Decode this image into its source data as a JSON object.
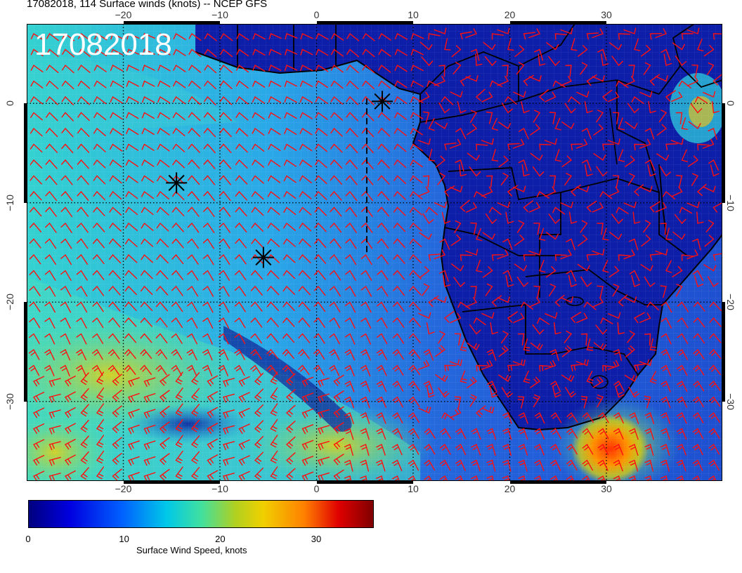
{
  "title": "17082018, 114 Surface winds (knots) -- NCEP GFS",
  "date_stamp": "17082018",
  "map": {
    "lon_range": [
      -30,
      42
    ],
    "lat_range": [
      -38,
      8
    ],
    "lon_ticks": [
      -20,
      -10,
      0,
      10,
      20,
      30
    ],
    "lat_ticks": [
      0,
      -10,
      -20,
      -30
    ],
    "lon_tick_labels": [
      "−20",
      "−10",
      "0",
      "10",
      "20",
      "30"
    ],
    "lat_tick_labels": [
      "0",
      "−10",
      "−20",
      "−30"
    ],
    "grid": true,
    "colors": {
      "ocean_field": "#22c8e0",
      "land_field": "#0c1fa8",
      "wind_barbs": "#ff0000",
      "coastline": "#000000"
    },
    "markers": [
      {
        "name": "asterisk-1",
        "lon": -14.5,
        "lat": -8.0
      },
      {
        "name": "asterisk-2",
        "lon": -5.5,
        "lat": -15.5
      },
      {
        "name": "asterisk-3",
        "lon": 6.8,
        "lat": 0.2
      }
    ],
    "dashed_line": {
      "lon": 5.2,
      "lat_from": 0.5,
      "lat_to": -15.0
    }
  },
  "colorbar": {
    "label": "Surface Wind Speed, knots",
    "ticks": [
      0,
      10,
      20,
      30
    ],
    "tick_labels": [
      "0",
      "10",
      "20",
      "30"
    ],
    "range": [
      0,
      36
    ]
  }
}
